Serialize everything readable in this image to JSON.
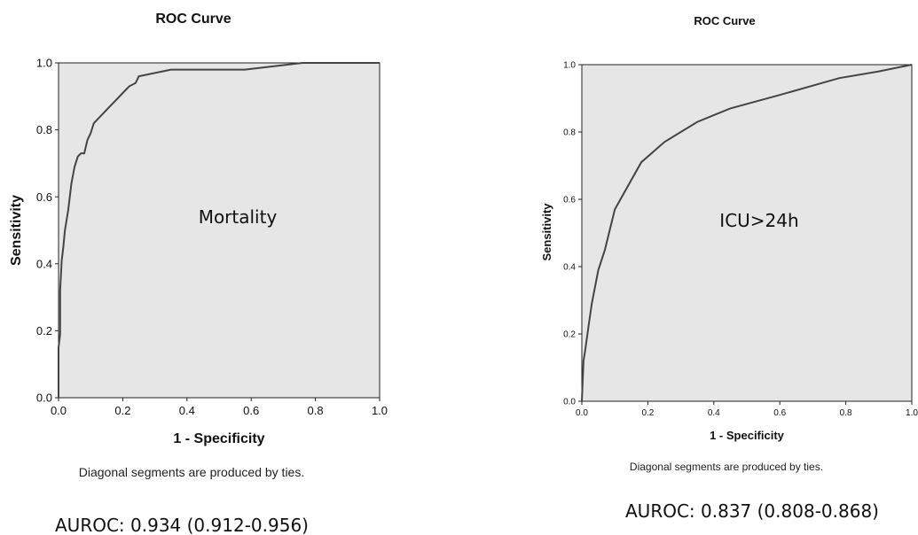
{
  "chart_data": [
    {
      "type": "line",
      "title": "ROC Curve",
      "xlabel": "1 - Specificity",
      "ylabel": "Sensitivity",
      "xlim": [
        0.0,
        1.0
      ],
      "ylim": [
        0.0,
        1.0
      ],
      "ticks": [
        "0.0",
        "0.2",
        "0.4",
        "0.6",
        "0.8",
        "1.0"
      ],
      "grid": false,
      "background": "#e6e6e6",
      "line_color": "#444444",
      "annotation": "Mortality",
      "note": "Diagonal segments are produced by ties.",
      "footnote": "AUROC: 0.934 (0.912-0.956)",
      "series": [
        {
          "x": [
            0.0,
            0.0,
            0.005,
            0.005,
            0.01,
            0.015,
            0.02,
            0.03,
            0.04,
            0.05,
            0.06,
            0.07,
            0.08,
            0.09,
            0.1,
            0.11,
            0.14,
            0.16,
            0.18,
            0.2,
            0.22,
            0.24,
            0.25,
            0.35,
            0.58,
            0.76,
            1.0
          ],
          "y": [
            0.0,
            0.15,
            0.19,
            0.32,
            0.41,
            0.45,
            0.5,
            0.56,
            0.64,
            0.69,
            0.72,
            0.73,
            0.73,
            0.77,
            0.79,
            0.82,
            0.85,
            0.87,
            0.89,
            0.91,
            0.93,
            0.94,
            0.96,
            0.98,
            0.98,
            1.0,
            1.0
          ]
        }
      ]
    },
    {
      "type": "line",
      "title": "ROC Curve",
      "xlabel": "1 - Specificity",
      "ylabel": "Sensitivity",
      "xlim": [
        0.0,
        1.0
      ],
      "ylim": [
        0.0,
        1.0
      ],
      "ticks": [
        "0.0",
        "0.2",
        "0.4",
        "0.6",
        "0.8",
        "1.0"
      ],
      "grid": false,
      "background": "#e6e6e6",
      "line_color": "#444444",
      "annotation": "ICU>24h",
      "note": "Diagonal segments are produced by ties.",
      "footnote": "AUROC: 0.837 (0.808-0.868)",
      "series": [
        {
          "x": [
            0.0,
            0.005,
            0.01,
            0.02,
            0.03,
            0.05,
            0.07,
            0.1,
            0.18,
            0.25,
            0.35,
            0.45,
            0.6,
            0.78,
            0.9,
            1.0
          ],
          "y": [
            0.0,
            0.12,
            0.15,
            0.22,
            0.29,
            0.39,
            0.45,
            0.57,
            0.71,
            0.77,
            0.83,
            0.87,
            0.91,
            0.96,
            0.98,
            1.0
          ]
        }
      ]
    }
  ]
}
